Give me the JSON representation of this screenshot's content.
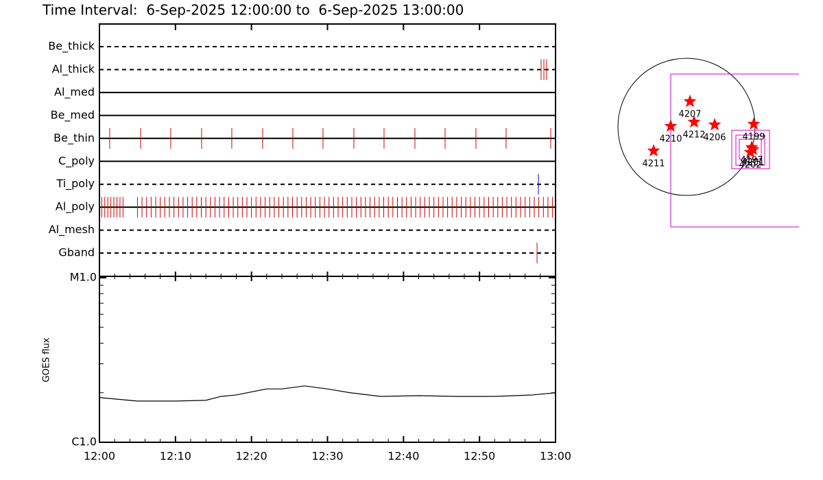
{
  "chart_data": {
    "type": "timeline",
    "title": "Time Interval:  6-Sep-2025 12:00:00 to  6-Sep-2025 13:00:00",
    "xlim": [
      0,
      60
    ],
    "xticks": [
      {
        "value": 0,
        "label": "12:00"
      },
      {
        "value": 10,
        "label": "12:10"
      },
      {
        "value": 20,
        "label": "12:20"
      },
      {
        "value": 30,
        "label": "12:30"
      },
      {
        "value": 40,
        "label": "12:40"
      },
      {
        "value": 50,
        "label": "12:50"
      },
      {
        "value": 60,
        "label": "13:00"
      }
    ],
    "rows": [
      {
        "name": "Be_thick",
        "dashed": true,
        "color": "#cc0000",
        "times": []
      },
      {
        "name": "Al_thick",
        "dashed": true,
        "color": "#cc0000",
        "times": [
          58.1,
          58.47,
          58.83
        ]
      },
      {
        "name": "Al_med",
        "dashed": false,
        "color": "#cc0000",
        "times": []
      },
      {
        "name": "Be_med",
        "dashed": false,
        "color": "#cc0000",
        "times": []
      },
      {
        "name": "Be_thin",
        "dashed": false,
        "color": "#cc0000",
        "times": [
          1.35,
          5.41,
          9.38,
          13.44,
          17.41,
          21.47,
          25.44,
          29.41,
          33.47,
          37.44,
          41.5,
          45.47,
          49.53,
          53.5,
          59.37
        ]
      },
      {
        "name": "C_poly",
        "dashed": false,
        "color": "#cc0000",
        "times": []
      },
      {
        "name": "Ti_poly",
        "dashed": true,
        "color": "#0000cc",
        "times": [
          57.75
        ]
      },
      {
        "name": "Al_poly",
        "dashed": false,
        "color": "#cc0000",
        "times": [
          0.3,
          0.7,
          1.1,
          1.5,
          1.9,
          2.3,
          2.7,
          3.1,
          5.0,
          5.6,
          6.2,
          6.8,
          7.4,
          8.0,
          8.6,
          9.2,
          9.8,
          10.4,
          11.0,
          11.6,
          12.2,
          12.8,
          13.4,
          14.0,
          14.6,
          15.2,
          15.8,
          16.4,
          17.0,
          17.6,
          18.2,
          18.8,
          19.4,
          20.0,
          20.6,
          21.2,
          21.8,
          22.4,
          23.0,
          23.6,
          24.2,
          24.8,
          25.4,
          26.0,
          26.6,
          27.2,
          27.8,
          28.4,
          29.0,
          29.6,
          30.2,
          30.8,
          31.4,
          32.0,
          32.6,
          33.2,
          33.8,
          34.4,
          35.0,
          35.6,
          36.2,
          36.8,
          37.4,
          38.0,
          38.6,
          39.2,
          39.8,
          40.4,
          41.0,
          41.6,
          42.2,
          42.8,
          43.4,
          44.0,
          44.6,
          45.2,
          45.8,
          46.4,
          47.0,
          47.6,
          48.2,
          48.8,
          49.4,
          50.0,
          50.6,
          51.2,
          51.8,
          52.4,
          53.0,
          53.6,
          54.2,
          54.8,
          55.4,
          56.0,
          56.6,
          57.2,
          57.8,
          58.4,
          59.0,
          59.6
        ]
      },
      {
        "name": "Al_mesh",
        "dashed": true,
        "color": "#cc0000",
        "times": []
      },
      {
        "name": "Gband",
        "dashed": true,
        "color": "#cc0000",
        "times": [
          57.57
        ]
      }
    ],
    "goes": {
      "type": "line",
      "ylabel": "GOES flux",
      "log": true,
      "color": "#000000",
      "ylim": [
        1e-06,
        1e-05
      ],
      "yticks": [
        {
          "value": 1e-06,
          "label": "C1.0"
        },
        {
          "value": 1e-05,
          "label": "M1.0"
        }
      ],
      "x": [
        0,
        5,
        10,
        14,
        16,
        18,
        22,
        24,
        27,
        30,
        33,
        37,
        42,
        47,
        52,
        57,
        60
      ],
      "values": [
        1.87e-06,
        1.78e-06,
        1.78e-06,
        1.8e-06,
        1.9e-06,
        1.94e-06,
        2.11e-06,
        2.11e-06,
        2.2e-06,
        2.11e-06,
        2e-06,
        1.9e-06,
        1.92e-06,
        1.9e-06,
        1.9e-06,
        1.94e-06,
        2e-06
      ]
    }
  },
  "map": {
    "star_color": "#ff0000",
    "box_color": "#cc00cc",
    "regions": [
      {
        "label": "4207"
      },
      {
        "label": "4210"
      },
      {
        "label": "4212"
      },
      {
        "label": "4206"
      },
      {
        "label": "4199"
      },
      {
        "label": "4211"
      },
      {
        "label": "4197"
      },
      {
        "label": "4202"
      },
      {
        "label": "4201"
      }
    ]
  }
}
